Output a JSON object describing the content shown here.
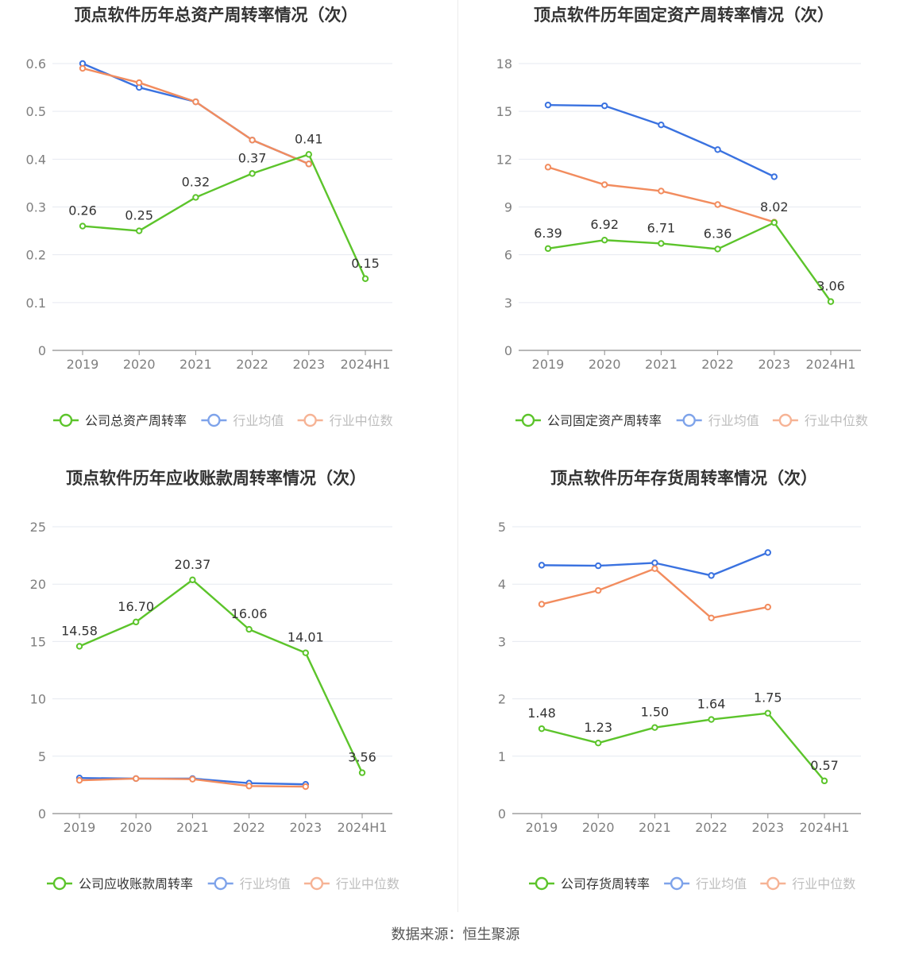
{
  "colors": {
    "company": "#5cc42b",
    "industry_avg": "#3a72e0",
    "industry_median": "#f28c5e",
    "grid": "#e6e9f0",
    "axis_text": "#7f7f7f",
    "label_text": "#333333"
  },
  "source_text": "数据来源：恒生聚源",
  "chart_data": [
    {
      "type": "line",
      "title": "顶点软件历年总资产周转率情况（次）",
      "categories": [
        "2019",
        "2020",
        "2021",
        "2022",
        "2023",
        "2024H1"
      ],
      "y_ticks": [
        "0",
        "0.1",
        "0.2",
        "0.3",
        "0.4",
        "0.5",
        "0.6"
      ],
      "ylim": [
        0,
        0.6
      ],
      "grid": true,
      "legend_position": "bottom",
      "series": [
        {
          "name": "公司总资产周转率",
          "key": "company",
          "values": [
            0.26,
            0.25,
            0.32,
            0.37,
            0.41,
            0.15
          ],
          "labels": [
            "0.26",
            "0.25",
            "0.32",
            "0.37",
            "0.41",
            "0.15"
          ]
        },
        {
          "name": "行业均值",
          "key": "industry_avg",
          "values": [
            0.6,
            0.55,
            0.52,
            0.44,
            0.39,
            null
          ]
        },
        {
          "name": "行业中位数",
          "key": "industry_median",
          "values": [
            0.59,
            0.56,
            0.52,
            0.44,
            0.39,
            null
          ]
        }
      ]
    },
    {
      "type": "line",
      "title": "顶点软件历年固定资产周转率情况（次）",
      "categories": [
        "2019",
        "2020",
        "2021",
        "2022",
        "2023",
        "2024H1"
      ],
      "y_ticks": [
        "0",
        "3",
        "6",
        "9",
        "12",
        "15",
        "18"
      ],
      "ylim": [
        0,
        18
      ],
      "grid": true,
      "legend_position": "bottom",
      "series": [
        {
          "name": "公司固定资产周转率",
          "key": "company",
          "values": [
            6.39,
            6.92,
            6.71,
            6.36,
            8.02,
            3.06
          ],
          "labels": [
            "6.39",
            "6.92",
            "6.71",
            "6.36",
            "8.02",
            "3.06"
          ]
        },
        {
          "name": "行业均值",
          "key": "industry_avg",
          "values": [
            15.4,
            15.35,
            14.15,
            12.6,
            10.9,
            null
          ]
        },
        {
          "name": "行业中位数",
          "key": "industry_median",
          "values": [
            11.5,
            10.4,
            10.0,
            9.15,
            8.05,
            null
          ]
        }
      ]
    },
    {
      "type": "line",
      "title": "顶点软件历年应收账款周转率情况（次）",
      "categories": [
        "2019",
        "2020",
        "2021",
        "2022",
        "2023",
        "2024H1"
      ],
      "y_ticks": [
        "0",
        "5",
        "10",
        "15",
        "20",
        "25"
      ],
      "ylim": [
        0,
        25
      ],
      "grid": true,
      "legend_position": "bottom",
      "series": [
        {
          "name": "公司应收账款周转率",
          "key": "company",
          "values": [
            14.58,
            16.7,
            20.37,
            16.06,
            14.01,
            3.56
          ],
          "labels": [
            "14.58",
            "16.70",
            "20.37",
            "16.06",
            "14.01",
            "3.56"
          ]
        },
        {
          "name": "行业均值",
          "key": "industry_avg",
          "values": [
            3.1,
            3.05,
            3.05,
            2.65,
            2.55,
            null
          ]
        },
        {
          "name": "行业中位数",
          "key": "industry_median",
          "values": [
            2.9,
            3.05,
            3.0,
            2.4,
            2.35,
            null
          ]
        }
      ]
    },
    {
      "type": "line",
      "title": "顶点软件历年存货周转率情况（次）",
      "categories": [
        "2019",
        "2020",
        "2021",
        "2022",
        "2023",
        "2024H1"
      ],
      "y_ticks": [
        "0",
        "1",
        "2",
        "3",
        "4",
        "5"
      ],
      "ylim": [
        0,
        5
      ],
      "grid": true,
      "legend_position": "bottom",
      "series": [
        {
          "name": "公司存货周转率",
          "key": "company",
          "values": [
            1.48,
            1.23,
            1.5,
            1.64,
            1.75,
            0.57
          ],
          "labels": [
            "1.48",
            "1.23",
            "1.50",
            "1.64",
            "1.75",
            "0.57"
          ]
        },
        {
          "name": "行业均值",
          "key": "industry_avg",
          "values": [
            4.33,
            4.32,
            4.37,
            4.15,
            4.55,
            null
          ]
        },
        {
          "name": "行业中位数",
          "key": "industry_median",
          "values": [
            3.65,
            3.89,
            4.27,
            3.41,
            3.6,
            null
          ]
        }
      ]
    }
  ]
}
